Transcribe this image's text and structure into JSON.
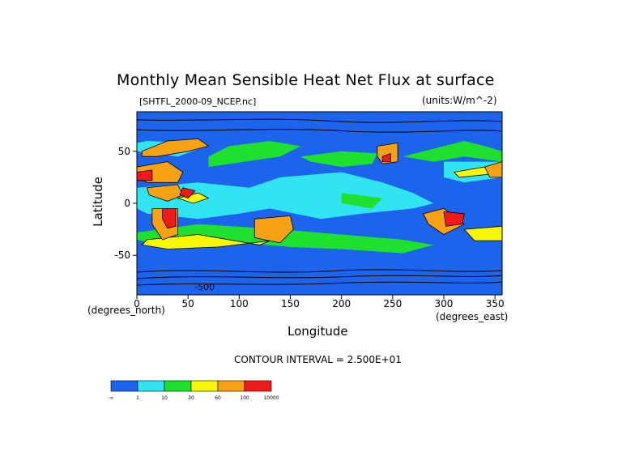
{
  "chart_data": {
    "type": "heatmap",
    "title": "Monthly Mean Sensible Heat Net Flux at surface",
    "file_label": "[SHTFL_2000-09_NCEP.nc]",
    "units_label": "(units:W/m^-2)",
    "xlabel": "Longitude",
    "x_unit_label": "(degrees_east)",
    "ylabel": "Latitude",
    "y_unit_label": "(degrees_north)",
    "xlim": [
      0,
      357
    ],
    "ylim": [
      -88,
      88
    ],
    "x_ticks": [
      0,
      50,
      100,
      150,
      200,
      250,
      300,
      350
    ],
    "y_ticks": [
      50,
      0,
      -50
    ],
    "contour_interval_text": "CONTOUR INTERVAL = 2.500E+01",
    "contour_label": "-500",
    "colorbar": {
      "bins": [
        {
          "color": "#1c64ec",
          "upper": "1"
        },
        {
          "color": "#30e4f2",
          "upper": "10"
        },
        {
          "color": "#1ee02e",
          "upper": "30"
        },
        {
          "color": "#f8f806",
          "upper": "60"
        },
        {
          "color": "#f6a214",
          "upper": "100"
        },
        {
          "color": "#f01a1a",
          "upper": "10000"
        }
      ],
      "tick_labels": [
        "-∞",
        "1",
        "10",
        "30",
        "60",
        "100",
        "10000"
      ]
    },
    "regions": [
      {
        "category": 0,
        "points": [
          [
            0,
            88
          ],
          [
            357,
            88
          ],
          [
            357,
            -88
          ],
          [
            0,
            -88
          ]
        ]
      },
      {
        "category": 1,
        "points": [
          [
            0,
            15
          ],
          [
            60,
            20
          ],
          [
            110,
            15
          ],
          [
            140,
            25
          ],
          [
            200,
            30
          ],
          [
            240,
            20
          ],
          [
            270,
            10
          ],
          [
            290,
            0
          ],
          [
            270,
            -5
          ],
          [
            220,
            -10
          ],
          [
            180,
            -15
          ],
          [
            130,
            -5
          ],
          [
            100,
            -10
          ],
          [
            60,
            -15
          ],
          [
            10,
            -10
          ],
          [
            0,
            -5
          ]
        ]
      },
      {
        "category": 1,
        "points": [
          [
            0,
            50
          ],
          [
            40,
            45
          ],
          [
            60,
            52
          ],
          [
            50,
            58
          ],
          [
            10,
            60
          ],
          [
            0,
            58
          ]
        ]
      },
      {
        "category": 1,
        "points": [
          [
            300,
            40
          ],
          [
            357,
            40
          ],
          [
            357,
            25
          ],
          [
            320,
            20
          ],
          [
            300,
            25
          ]
        ]
      },
      {
        "category": 2,
        "points": [
          [
            60,
            -20
          ],
          [
            140,
            -25
          ],
          [
            200,
            -30
          ],
          [
            260,
            -35
          ],
          [
            290,
            -40
          ],
          [
            260,
            -48
          ],
          [
            200,
            -44
          ],
          [
            150,
            -42
          ],
          [
            100,
            -38
          ],
          [
            60,
            -33
          ],
          [
            20,
            -40
          ],
          [
            0,
            -35
          ],
          [
            0,
            -28
          ]
        ]
      },
      {
        "category": 2,
        "points": [
          [
            160,
            45
          ],
          [
            200,
            50
          ],
          [
            235,
            48
          ],
          [
            230,
            38
          ],
          [
            200,
            35
          ],
          [
            170,
            40
          ]
        ]
      },
      {
        "category": 2,
        "points": [
          [
            260,
            45
          ],
          [
            300,
            55
          ],
          [
            320,
            60
          ],
          [
            340,
            55
          ],
          [
            357,
            50
          ],
          [
            357,
            40
          ],
          [
            320,
            45
          ],
          [
            290,
            40
          ]
        ]
      },
      {
        "category": 2,
        "points": [
          [
            70,
            35
          ],
          [
            140,
            45
          ],
          [
            160,
            55
          ],
          [
            130,
            60
          ],
          [
            90,
            55
          ],
          [
            70,
            45
          ]
        ]
      },
      {
        "category": 2,
        "points": [
          [
            200,
            10
          ],
          [
            240,
            5
          ],
          [
            230,
            -5
          ],
          [
            200,
            0
          ]
        ]
      },
      {
        "category": 3,
        "points": [
          [
            10,
            -35
          ],
          [
            60,
            -30
          ],
          [
            120,
            -40
          ],
          [
            130,
            -36
          ],
          [
            80,
            -42
          ],
          [
            30,
            -44
          ],
          [
            5,
            -40
          ]
        ]
      },
      {
        "category": 3,
        "points": [
          [
            320,
            -25
          ],
          [
            357,
            -22
          ],
          [
            357,
            -36
          ],
          [
            330,
            -36
          ]
        ]
      },
      {
        "category": 3,
        "points": [
          [
            40,
            5
          ],
          [
            60,
            10
          ],
          [
            70,
            5
          ],
          [
            55,
            0
          ]
        ]
      },
      {
        "category": 3,
        "points": [
          [
            310,
            30
          ],
          [
            340,
            35
          ],
          [
            345,
            28
          ],
          [
            315,
            25
          ]
        ]
      },
      {
        "category": 4,
        "points": [
          [
            5,
            50
          ],
          [
            30,
            60
          ],
          [
            60,
            62
          ],
          [
            70,
            55
          ],
          [
            50,
            50
          ],
          [
            20,
            45
          ],
          [
            5,
            45
          ]
        ]
      },
      {
        "category": 4,
        "points": [
          [
            0,
            35
          ],
          [
            30,
            40
          ],
          [
            45,
            30
          ],
          [
            40,
            20
          ],
          [
            10,
            20
          ],
          [
            0,
            25
          ]
        ]
      },
      {
        "category": 4,
        "points": [
          [
            10,
            15
          ],
          [
            40,
            18
          ],
          [
            45,
            8
          ],
          [
            30,
            2
          ],
          [
            12,
            8
          ]
        ]
      },
      {
        "category": 4,
        "points": [
          [
            15,
            -5
          ],
          [
            40,
            -5
          ],
          [
            40,
            -30
          ],
          [
            25,
            -35
          ],
          [
            15,
            -20
          ]
        ]
      },
      {
        "category": 4,
        "points": [
          [
            115,
            -15
          ],
          [
            150,
            -12
          ],
          [
            153,
            -25
          ],
          [
            140,
            -38
          ],
          [
            115,
            -33
          ]
        ]
      },
      {
        "category": 4,
        "points": [
          [
            235,
            55
          ],
          [
            255,
            58
          ],
          [
            255,
            40
          ],
          [
            240,
            38
          ],
          [
            235,
            45
          ]
        ]
      },
      {
        "category": 4,
        "points": [
          [
            280,
            -10
          ],
          [
            300,
            -5
          ],
          [
            320,
            -20
          ],
          [
            300,
            -30
          ],
          [
            285,
            -20
          ]
        ]
      },
      {
        "category": 4,
        "points": [
          [
            340,
            35
          ],
          [
            357,
            40
          ],
          [
            357,
            25
          ],
          [
            345,
            25
          ]
        ]
      },
      {
        "category": 5,
        "points": [
          [
            25,
            -5
          ],
          [
            38,
            -5
          ],
          [
            38,
            -22
          ],
          [
            30,
            -24
          ],
          [
            25,
            -15
          ]
        ]
      },
      {
        "category": 5,
        "points": [
          [
            45,
            15
          ],
          [
            57,
            12
          ],
          [
            50,
            5
          ],
          [
            42,
            8
          ]
        ]
      },
      {
        "category": 5,
        "points": [
          [
            300,
            -8
          ],
          [
            320,
            -10
          ],
          [
            318,
            -20
          ],
          [
            302,
            -22
          ]
        ]
      },
      {
        "category": 5,
        "points": [
          [
            0,
            30
          ],
          [
            15,
            32
          ],
          [
            15,
            22
          ],
          [
            0,
            22
          ]
        ]
      },
      {
        "category": 5,
        "points": [
          [
            240,
            45
          ],
          [
            248,
            48
          ],
          [
            248,
            40
          ],
          [
            240,
            40
          ]
        ]
      }
    ]
  }
}
